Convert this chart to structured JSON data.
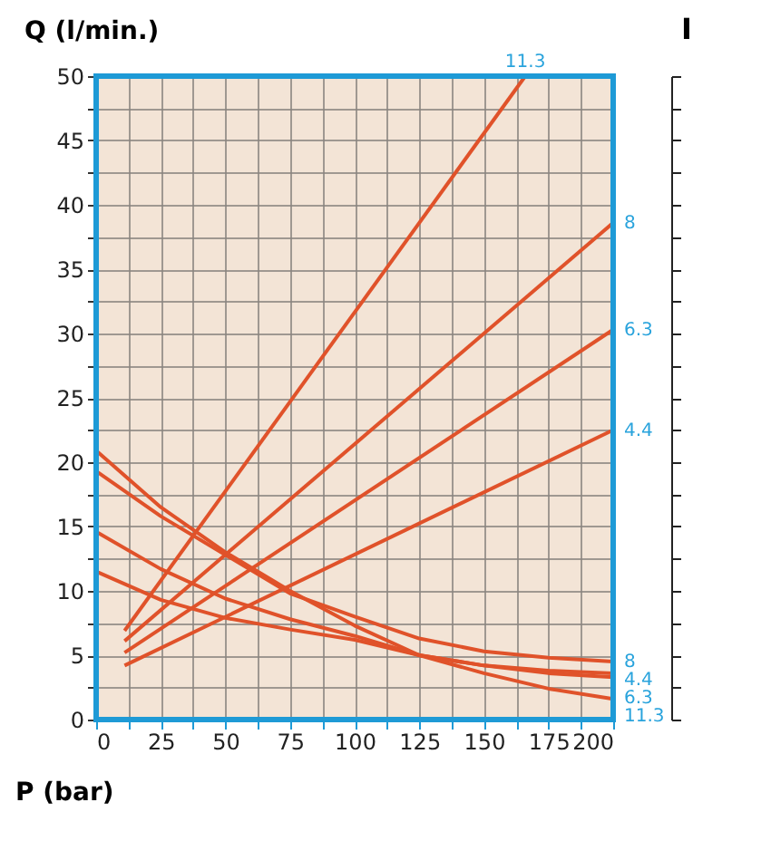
{
  "chart_data": {
    "type": "line",
    "xlabel": "P (bar)",
    "ylabel": "Q (l/min.)",
    "y2label": "I",
    "xlim": [
      0,
      200
    ],
    "ylim": [
      0,
      50
    ],
    "xticks": [
      0,
      {
        "value": 12.5,
        "label": null
      },
      25,
      {
        "value": 37.5,
        "label": null
      },
      50,
      {
        "value": 62.5,
        "label": null
      },
      75,
      {
        "value": 87.5,
        "label": null
      },
      100,
      {
        "value": 112.5,
        "label": null
      },
      125,
      {
        "value": 137.5,
        "label": null
      },
      150,
      {
        "value": 162.5,
        "label": null
      },
      175,
      {
        "value": 187.5,
        "label": null
      },
      200
    ],
    "yticks": [
      0,
      {
        "value": 2.5,
        "label": null
      },
      5,
      {
        "value": 7.5,
        "label": null
      },
      10,
      {
        "value": 12.5,
        "label": null
      },
      15,
      {
        "value": 17.5,
        "label": null
      },
      20,
      {
        "value": 22.5,
        "label": null
      },
      25,
      {
        "value": 27.5,
        "label": null
      },
      30,
      {
        "value": 32.5,
        "label": null
      },
      35,
      {
        "value": 37.5,
        "label": null
      },
      40,
      {
        "value": 42.5,
        "label": null
      },
      45,
      {
        "value": 47.5,
        "label": null
      },
      50
    ],
    "grid": true,
    "legend": false,
    "marker": "none",
    "line_style": "solid",
    "series": [
      {
        "name": "11.3",
        "color": "#e0522a",
        "x": [
          11,
          166
        ],
        "values": [
          6.9,
          50
        ]
      },
      {
        "name": "8",
        "color": "#e0522a",
        "x": [
          11,
          200
        ],
        "values": [
          6.1,
          38.6
        ]
      },
      {
        "name": "6.3",
        "color": "#e0522a",
        "x": [
          11,
          200
        ],
        "values": [
          5.2,
          30.3
        ]
      },
      {
        "name": "4.4",
        "color": "#e0522a",
        "x": [
          11,
          200
        ],
        "values": [
          4.2,
          22.5
        ]
      },
      {
        "name": "8",
        "color": "#e0522a",
        "x": [
          0,
          25,
          50,
          75,
          100,
          125,
          150,
          175,
          200
        ],
        "values": [
          19.3,
          15.8,
          12.8,
          9.8,
          8.0,
          6.3,
          5.3,
          4.8,
          4.5
        ]
      },
      {
        "name": "4.4",
        "color": "#e0522a",
        "x": [
          0,
          25,
          50,
          75,
          100,
          125,
          150,
          175,
          200
        ],
        "values": [
          11.5,
          9.3,
          7.9,
          7.0,
          6.2,
          5.0,
          4.2,
          3.8,
          3.6
        ]
      },
      {
        "name": "6.3",
        "color": "#e0522a",
        "x": [
          0,
          25,
          50,
          75,
          100,
          125,
          150,
          175,
          200
        ],
        "values": [
          14.6,
          11.7,
          9.4,
          7.8,
          6.5,
          5.0,
          4.2,
          3.6,
          3.3
        ]
      },
      {
        "name": "11.3",
        "color": "#e0522a",
        "x": [
          0,
          25,
          50,
          75,
          100,
          125,
          150,
          175,
          200
        ],
        "values": [
          20.9,
          16.5,
          13.0,
          10.0,
          7.3,
          5.0,
          3.6,
          2.4,
          1.6
        ]
      }
    ]
  }
}
